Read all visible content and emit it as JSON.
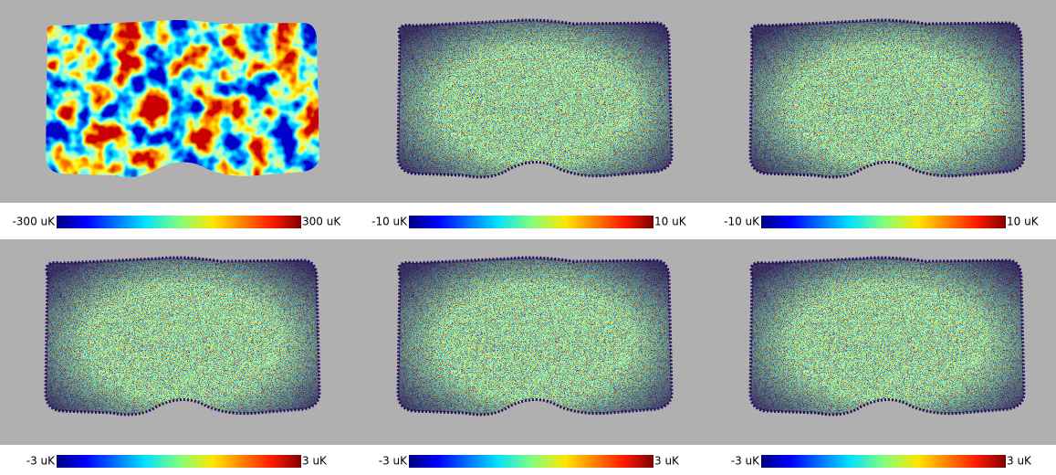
{
  "panels": [
    {
      "min_label": "-300 uK",
      "max_label": "300 uK"
    },
    {
      "min_label": "-10 uK",
      "max_label": "10 uK"
    },
    {
      "min_label": "-10 uK",
      "max_label": "10 uK"
    },
    {
      "min_label": "-3 uK",
      "max_label": "3 uK"
    },
    {
      "min_label": "-3 uK",
      "max_label": "3 uK"
    },
    {
      "min_label": "-3 uK",
      "max_label": "3 uK"
    }
  ]
}
